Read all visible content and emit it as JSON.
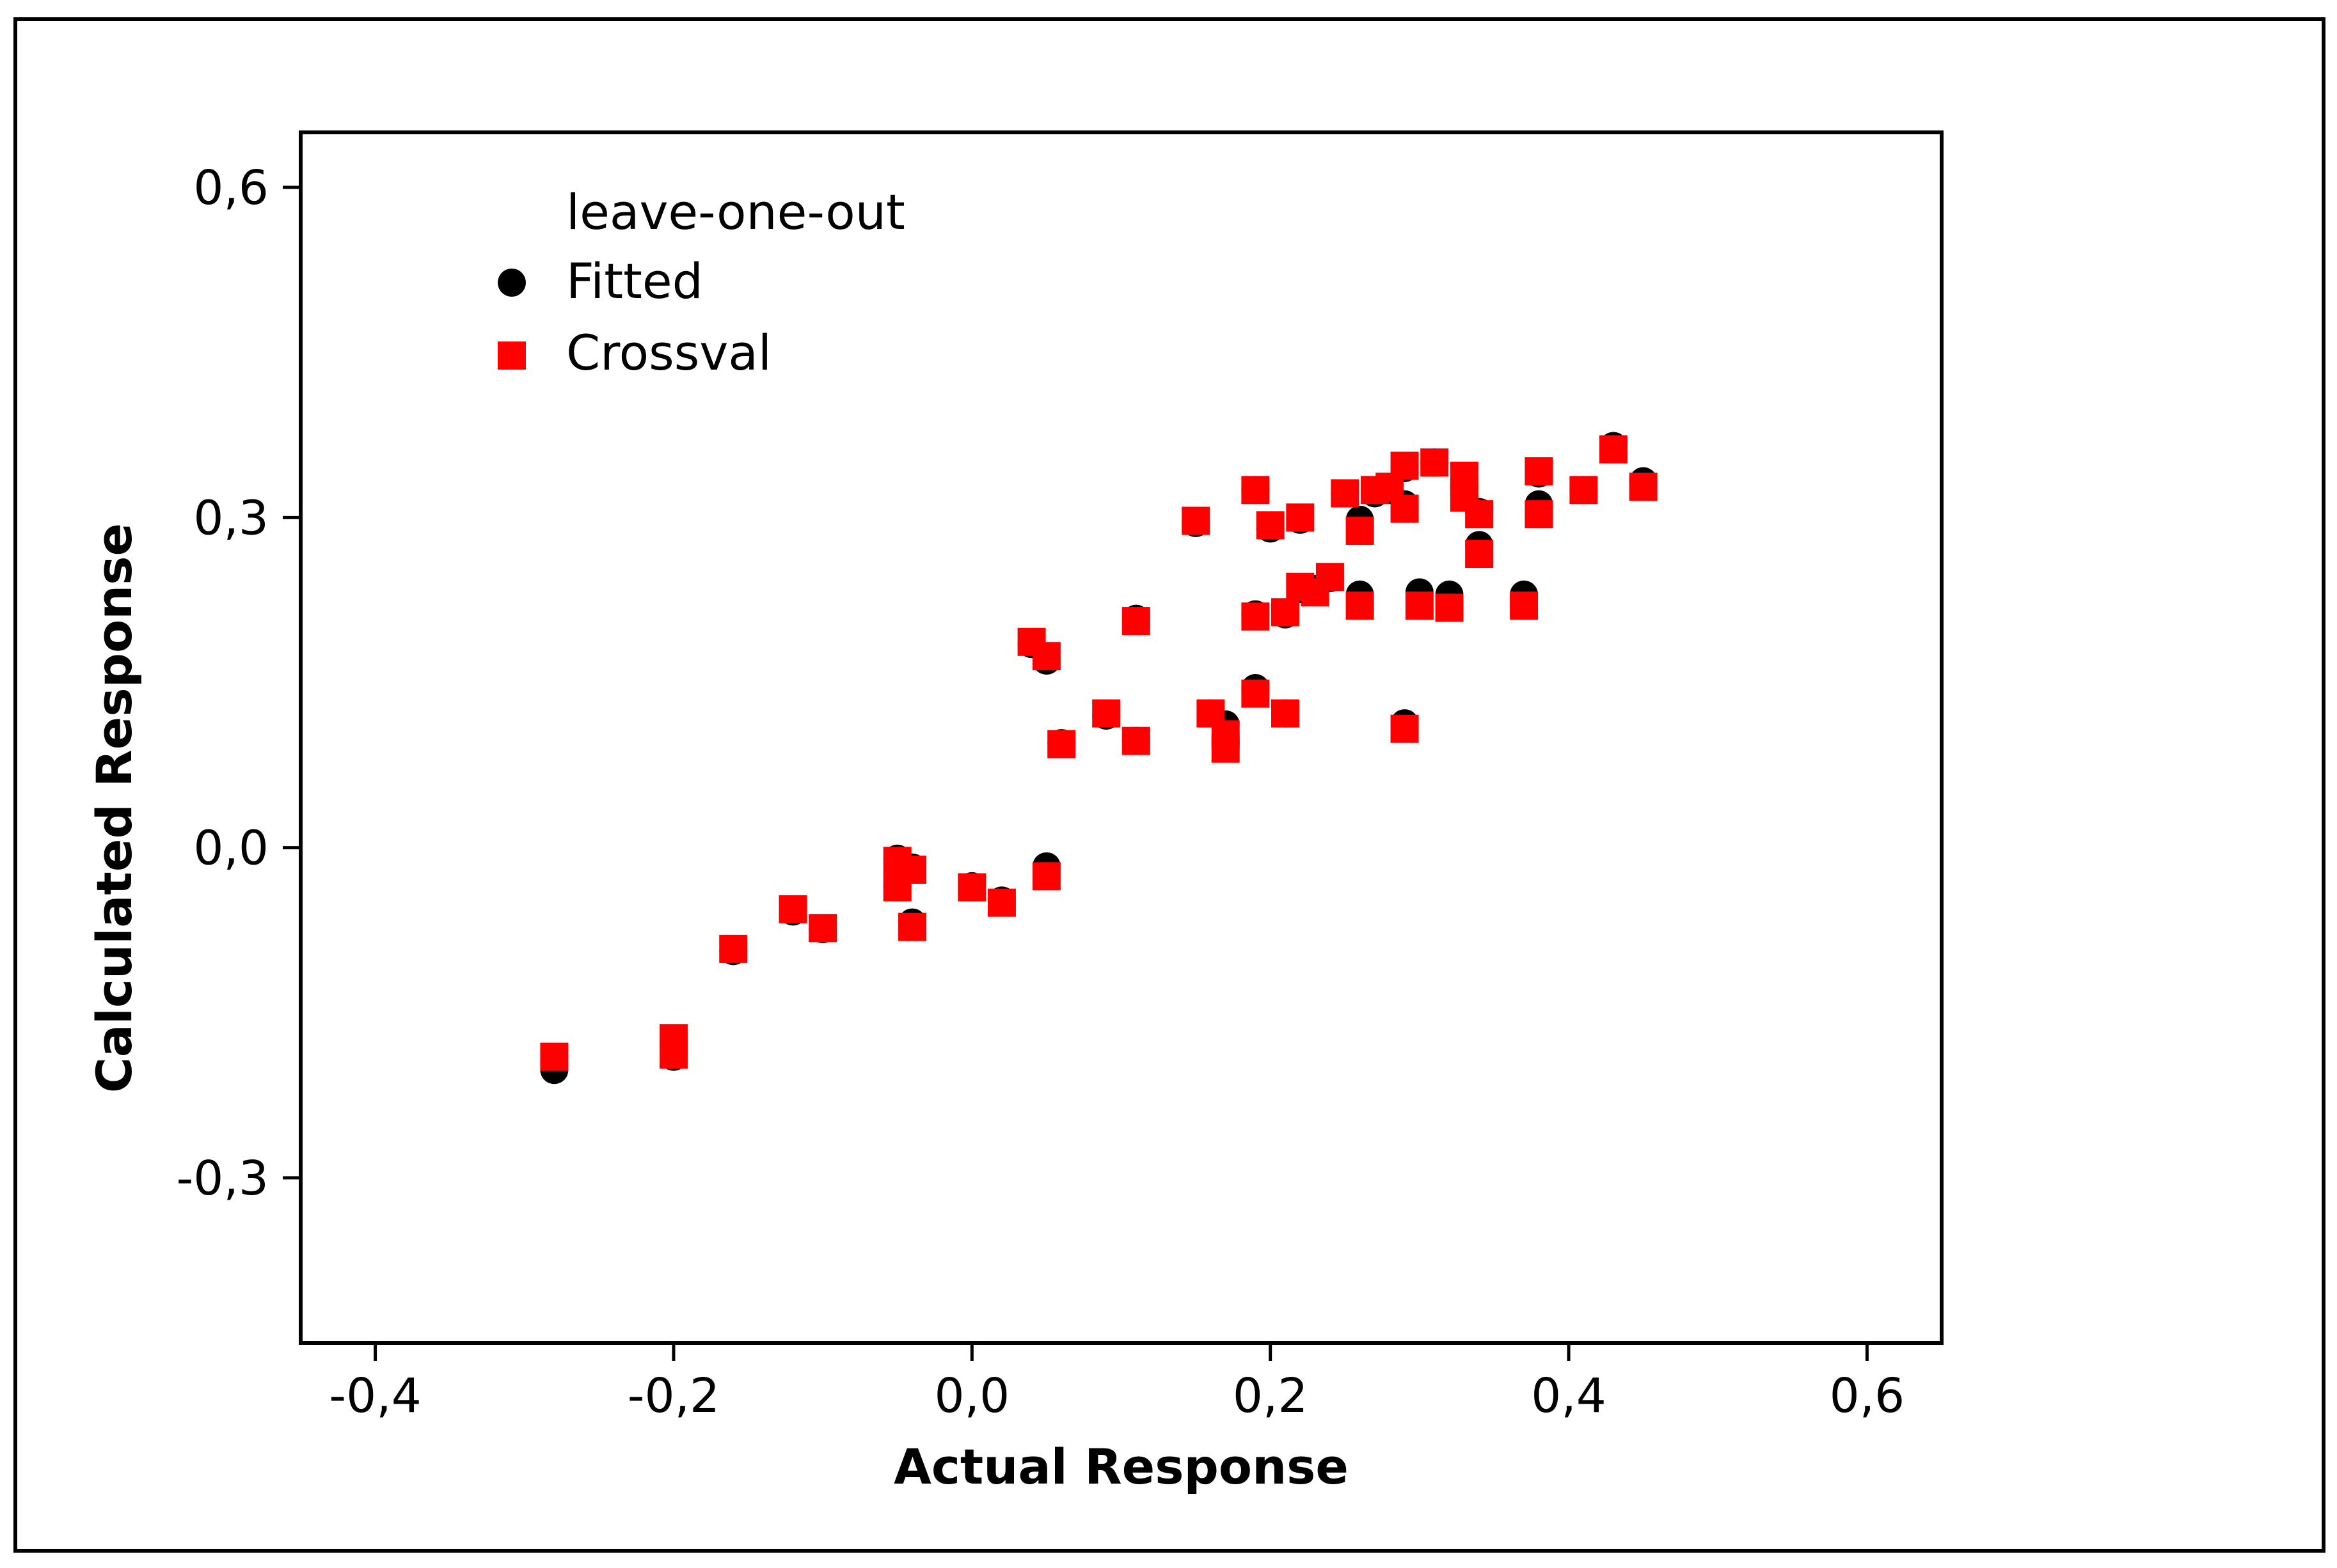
{
  "chart_data": {
    "type": "scatter",
    "title": "",
    "xlabel": "Actual Response",
    "ylabel": "Calculated Response",
    "xlim": [
      -0.45,
      0.65
    ],
    "ylim": [
      -0.45,
      0.65
    ],
    "x_ticks": [
      -0.4,
      -0.2,
      0.0,
      0.2,
      0.4,
      0.6
    ],
    "y_ticks": [
      -0.3,
      0.0,
      0.3,
      0.6
    ],
    "x_tick_labels": [
      "-0,4",
      "-0,2",
      "0,0",
      "0,2",
      "0,4",
      "0,6"
    ],
    "y_tick_labels": [
      "-0,3",
      "0,0",
      "0,3",
      "0,6"
    ],
    "grid": false,
    "legend": {
      "title": "leave-one-out",
      "position": "top-left"
    },
    "series": [
      {
        "name": "Fitted",
        "marker": "circle",
        "color": "#000000",
        "points": [
          [
            -0.28,
            -0.202
          ],
          [
            -0.2,
            -0.176
          ],
          [
            -0.2,
            -0.19
          ],
          [
            -0.16,
            -0.094
          ],
          [
            -0.12,
            -0.058
          ],
          [
            -0.1,
            -0.074
          ],
          [
            -0.05,
            -0.01
          ],
          [
            -0.05,
            -0.035
          ],
          [
            -0.04,
            -0.018
          ],
          [
            -0.04,
            -0.068
          ],
          [
            0.0,
            -0.035
          ],
          [
            0.02,
            -0.048
          ],
          [
            0.04,
            0.185
          ],
          [
            0.05,
            0.17
          ],
          [
            0.05,
            -0.017
          ],
          [
            0.06,
            0.095
          ],
          [
            0.09,
            0.12
          ],
          [
            0.11,
            0.208
          ],
          [
            0.11,
            0.097
          ],
          [
            0.15,
            0.295
          ],
          [
            0.16,
            0.122
          ],
          [
            0.17,
            0.112
          ],
          [
            0.17,
            0.096
          ],
          [
            0.19,
            0.325
          ],
          [
            0.19,
            0.212
          ],
          [
            0.19,
            0.145
          ],
          [
            0.2,
            0.29
          ],
          [
            0.21,
            0.212
          ],
          [
            0.21,
            0.122
          ],
          [
            0.22,
            0.298
          ],
          [
            0.22,
            0.235
          ],
          [
            0.23,
            0.235
          ],
          [
            0.24,
            0.245
          ],
          [
            0.25,
            0.322
          ],
          [
            0.26,
            0.298
          ],
          [
            0.26,
            0.23
          ],
          [
            0.27,
            0.322
          ],
          [
            0.28,
            0.325
          ],
          [
            0.29,
            0.345
          ],
          [
            0.29,
            0.312
          ],
          [
            0.29,
            0.113
          ],
          [
            0.3,
            0.232
          ],
          [
            0.31,
            0.35
          ],
          [
            0.32,
            0.23
          ],
          [
            0.33,
            0.335
          ],
          [
            0.33,
            0.32
          ],
          [
            0.34,
            0.305
          ],
          [
            0.34,
            0.275
          ],
          [
            0.37,
            0.23
          ],
          [
            0.38,
            0.34
          ],
          [
            0.38,
            0.312
          ],
          [
            0.41,
            0.325
          ],
          [
            0.43,
            0.365
          ],
          [
            0.45,
            0.333
          ]
        ]
      },
      {
        "name": "Crossval",
        "marker": "square",
        "color": "#ff0000",
        "points": [
          [
            -0.28,
            -0.19
          ],
          [
            -0.2,
            -0.173
          ],
          [
            -0.2,
            -0.188
          ],
          [
            -0.16,
            -0.092
          ],
          [
            -0.12,
            -0.056
          ],
          [
            -0.1,
            -0.073
          ],
          [
            -0.05,
            -0.012
          ],
          [
            -0.05,
            -0.036
          ],
          [
            -0.04,
            -0.02
          ],
          [
            -0.04,
            -0.072
          ],
          [
            0.0,
            -0.036
          ],
          [
            0.02,
            -0.05
          ],
          [
            0.04,
            0.187
          ],
          [
            0.05,
            0.174
          ],
          [
            0.05,
            -0.026
          ],
          [
            0.06,
            0.094
          ],
          [
            0.09,
            0.122
          ],
          [
            0.11,
            0.206
          ],
          [
            0.11,
            0.097
          ],
          [
            0.15,
            0.297
          ],
          [
            0.16,
            0.122
          ],
          [
            0.17,
            0.103
          ],
          [
            0.17,
            0.09
          ],
          [
            0.19,
            0.325
          ],
          [
            0.19,
            0.21
          ],
          [
            0.19,
            0.14
          ],
          [
            0.2,
            0.293
          ],
          [
            0.21,
            0.214
          ],
          [
            0.21,
            0.122
          ],
          [
            0.22,
            0.3
          ],
          [
            0.22,
            0.237
          ],
          [
            0.23,
            0.232
          ],
          [
            0.24,
            0.246
          ],
          [
            0.25,
            0.322
          ],
          [
            0.26,
            0.288
          ],
          [
            0.26,
            0.22
          ],
          [
            0.27,
            0.325
          ],
          [
            0.28,
            0.328
          ],
          [
            0.29,
            0.347
          ],
          [
            0.29,
            0.308
          ],
          [
            0.29,
            0.108
          ],
          [
            0.3,
            0.22
          ],
          [
            0.31,
            0.35
          ],
          [
            0.32,
            0.218
          ],
          [
            0.33,
            0.338
          ],
          [
            0.33,
            0.318
          ],
          [
            0.34,
            0.303
          ],
          [
            0.34,
            0.267
          ],
          [
            0.37,
            0.22
          ],
          [
            0.38,
            0.342
          ],
          [
            0.38,
            0.303
          ],
          [
            0.41,
            0.325
          ],
          [
            0.43,
            0.362
          ],
          [
            0.45,
            0.328
          ]
        ]
      }
    ]
  }
}
